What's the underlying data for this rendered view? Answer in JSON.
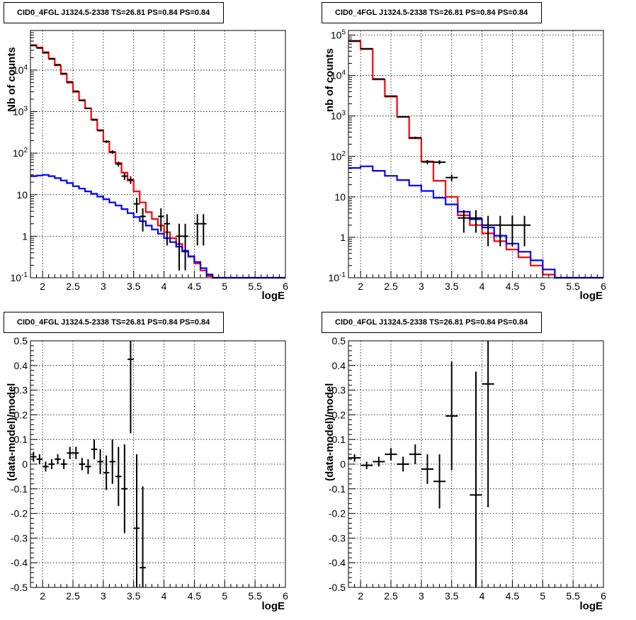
{
  "chart_data": [
    {
      "type": "line",
      "title": "CID0_4FGL J1324.5-2338 TS=26.81 PS=0.84 PS=0.84",
      "xlabel": "logE",
      "ylabel": "Nb of counts",
      "xlim": [
        1.8,
        6.0
      ],
      "ylim": [
        0.1,
        90000
      ],
      "log_y": true,
      "grid": true,
      "x_ticks": [
        "2",
        "2.5",
        "3",
        "3.5",
        "4",
        "4.5",
        "5",
        "5.5",
        "6"
      ],
      "y_ticks": [
        "10^{-1}",
        "1",
        "10",
        "10^{2}",
        "10^{3}",
        "10^{4}"
      ],
      "series": [
        {
          "color": "#ff0000",
          "step": true,
          "bin_width": 0.1,
          "x": [
            1.85,
            1.95,
            2.05,
            2.15,
            2.25,
            2.35,
            2.45,
            2.55,
            2.65,
            2.75,
            2.85,
            2.95,
            3.05,
            3.15,
            3.25,
            3.35,
            3.45,
            3.55,
            3.65,
            3.75,
            3.85,
            3.95,
            4.05,
            4.15,
            4.25,
            4.35,
            4.45,
            4.55,
            4.65,
            4.75,
            4.85,
            4.95,
            5.05,
            5.15,
            5.25,
            5.35,
            5.45,
            5.55,
            5.65,
            5.75,
            5.85,
            5.95
          ],
          "values": [
            40000,
            35000,
            27000,
            19000,
            13000,
            8000,
            5000,
            3000,
            1900,
            1200,
            650,
            360,
            190,
            105,
            58,
            34,
            22,
            12,
            6.5,
            3.8,
            2.6,
            1.8,
            1.25,
            0.9,
            0.65,
            0.45,
            0.32,
            0.22,
            0.15,
            0.11,
            0.1,
            0.1,
            0.1,
            0.1,
            0.1,
            0.1,
            0.1,
            0.1,
            0.1,
            0.1,
            0.1,
            0.1
          ]
        },
        {
          "color": "#0000ff",
          "step": true,
          "bin_width": 0.1,
          "x": [
            1.85,
            1.95,
            2.05,
            2.15,
            2.25,
            2.35,
            2.45,
            2.55,
            2.65,
            2.75,
            2.85,
            2.95,
            3.05,
            3.15,
            3.25,
            3.35,
            3.45,
            3.55,
            3.65,
            3.75,
            3.85,
            3.95,
            4.05,
            4.15,
            4.25,
            4.35,
            4.45,
            4.55,
            4.65,
            4.75,
            4.85,
            4.95,
            5.05,
            5.15,
            5.25,
            5.35,
            5.45,
            5.55,
            5.65,
            5.75,
            5.85,
            5.95
          ],
          "values": [
            28,
            29,
            30,
            28,
            25,
            22,
            19,
            16,
            14,
            12,
            10.5,
            9,
            7.8,
            6.5,
            5.5,
            4.5,
            3.6,
            2.9,
            2.3,
            1.8,
            1.45,
            1.15,
            0.9,
            0.72,
            0.56,
            0.43,
            0.33,
            0.24,
            0.17,
            0.12,
            0.1,
            0.1,
            0.1,
            0.1,
            0.1,
            0.1,
            0.1,
            0.1,
            0.1,
            0.1,
            0.1,
            0.1
          ]
        },
        {
          "color": "#000000",
          "type": "errorbar",
          "x": [
            1.85,
            1.95,
            2.05,
            2.15,
            2.25,
            2.35,
            2.45,
            2.55,
            2.65,
            2.75,
            2.85,
            2.95,
            3.05,
            3.15,
            3.25,
            3.35,
            3.45,
            3.55,
            3.65,
            3.95,
            4.05,
            4.25,
            4.35,
            4.55,
            4.65
          ],
          "values": [
            39000,
            34000,
            26000,
            18500,
            13500,
            8300,
            5200,
            3100,
            1850,
            1200,
            630,
            350,
            190,
            107,
            55,
            28,
            23,
            6,
            3,
            3,
            2,
            1,
            1,
            2,
            2
          ],
          "yerr_low": [
            200,
            185,
            160,
            135,
            115,
            90,
            72,
            55,
            43,
            35,
            25,
            19,
            14,
            10,
            7.4,
            5.3,
            4.8,
            2.4,
            1.7,
            1.7,
            1.4,
            0.85,
            0.85,
            1.4,
            1.4
          ],
          "yerr_high": [
            200,
            185,
            160,
            135,
            115,
            90,
            72,
            55,
            43,
            35,
            25,
            19,
            14,
            10,
            7.4,
            5.3,
            4.8,
            2.4,
            1.7,
            1.7,
            1.4,
            1,
            1,
            1.4,
            1.4
          ]
        }
      ]
    },
    {
      "type": "line",
      "title": "CID0_4FGL J1324.5-2338 TS=26.81 PS=0.84 PS=0.84",
      "xlabel": "logE",
      "ylabel": "nb of counts",
      "xlim": [
        1.8,
        6.0
      ],
      "ylim": [
        0.1,
        130000
      ],
      "log_y": true,
      "grid": true,
      "x_ticks": [
        "2",
        "2.5",
        "3",
        "3.5",
        "4",
        "4.5",
        "5",
        "5.5",
        "6"
      ],
      "y_ticks": [
        "10^{-1}",
        "1",
        "10",
        "10^{2}",
        "10^{3}",
        "10^{4}",
        "10^{5}"
      ],
      "series": [
        {
          "color": "#ff0000",
          "step": true,
          "bin_width": 0.2,
          "x": [
            1.9,
            2.1,
            2.3,
            2.5,
            2.7,
            2.9,
            3.1,
            3.3,
            3.5,
            3.7,
            3.9,
            4.1,
            4.3,
            4.5,
            4.7,
            4.9,
            5.1,
            5.3,
            5.5,
            5.7,
            5.9
          ],
          "values": [
            70000,
            45000,
            8000,
            3000,
            950,
            280,
            75,
            25,
            10,
            3.5,
            2,
            1.25,
            0.8,
            0.5,
            0.32,
            0.2,
            0.12,
            0.1,
            0.1,
            0.1,
            0.1
          ]
        },
        {
          "color": "#0000ff",
          "step": true,
          "bin_width": 0.2,
          "x": [
            1.9,
            2.1,
            2.3,
            2.5,
            2.7,
            2.9,
            3.1,
            3.3,
            3.5,
            3.7,
            3.9,
            4.1,
            4.3,
            4.5,
            4.7,
            4.9,
            5.1,
            5.3,
            5.5,
            5.7,
            5.9
          ],
          "values": [
            52,
            57,
            44,
            33,
            26,
            19,
            14,
            9.5,
            6.5,
            4.3,
            2.8,
            1.75,
            1.1,
            0.7,
            0.44,
            0.27,
            0.16,
            0.1,
            0.1,
            0.1,
            0.1
          ]
        },
        {
          "color": "#000000",
          "type": "errorbar",
          "x_half_width": 0.1,
          "x": [
            1.9,
            2.1,
            2.3,
            2.5,
            2.7,
            2.9,
            3.1,
            3.3,
            3.5,
            3.7,
            3.9,
            4.1,
            4.3,
            4.5,
            4.7
          ],
          "values": [
            72000,
            46000,
            8200,
            3100,
            950,
            290,
            73,
            72,
            30,
            3,
            3,
            2,
            2,
            2,
            2
          ],
          "yerr_low": [
            270,
            215,
            90,
            55,
            31,
            17,
            8.5,
            8.5,
            5.5,
            1.7,
            1.7,
            1.4,
            1.4,
            1.4,
            1.4
          ],
          "yerr_high": [
            270,
            215,
            90,
            55,
            31,
            17,
            8.5,
            8.5,
            5.5,
            1.7,
            1.7,
            1.4,
            1.4,
            1.4,
            1.4
          ]
        }
      ]
    },
    {
      "type": "scatter",
      "title": "CID0_4FGL J1324.5-2338 TS=26.81 PS=0.84 PS=0.84",
      "xlabel": "logE",
      "ylabel": "(data-model)/model",
      "xlim": [
        1.8,
        6.0
      ],
      "ylim": [
        -0.5,
        0.5
      ],
      "grid": true,
      "x_ticks": [
        "2",
        "2.5",
        "3",
        "3.5",
        "4",
        "4.5",
        "5",
        "5.5",
        "6"
      ],
      "y_ticks": [
        "-0.5",
        "-0.4",
        "-0.3",
        "-0.2",
        "-0.1",
        "0",
        "0.1",
        "0.2",
        "0.3",
        "0.4",
        "0.5"
      ],
      "series": [
        {
          "color": "#000000",
          "type": "errorbar",
          "x_half_width": 0.05,
          "x": [
            1.85,
            1.95,
            2.05,
            2.15,
            2.25,
            2.35,
            2.45,
            2.55,
            2.65,
            2.75,
            2.85,
            2.95,
            3.05,
            3.15,
            3.25,
            3.35,
            3.45,
            3.55,
            3.65
          ],
          "values": [
            0.03,
            0.02,
            -0.01,
            0.0,
            0.02,
            0.0,
            0.045,
            0.045,
            0.0,
            -0.01,
            0.06,
            0.01,
            -0.035,
            0.01,
            -0.05,
            -0.1,
            0.425,
            -0.26,
            -0.42
          ],
          "yerr": [
            0.02,
            0.02,
            0.02,
            0.02,
            0.02,
            0.02,
            0.025,
            0.025,
            0.025,
            0.03,
            0.04,
            0.05,
            0.07,
            0.09,
            0.12,
            0.18,
            0.3,
            0.3,
            0.33
          ]
        }
      ]
    },
    {
      "type": "scatter",
      "title": "CID0_4FGL J1324.5-2338 TS=26.81 PS=0.84 PS=0.84",
      "xlabel": "logE",
      "ylabel": "(data-model)/model",
      "xlim": [
        1.8,
        6.0
      ],
      "ylim": [
        -0.5,
        0.5
      ],
      "grid": true,
      "x_ticks": [
        "2",
        "2.5",
        "3",
        "3.5",
        "4",
        "4.5",
        "5",
        "5.5",
        "6"
      ],
      "y_ticks": [
        "-0.5",
        "-0.4",
        "-0.3",
        "-0.2",
        "-0.1",
        "0",
        "0.1",
        "0.2",
        "0.3",
        "0.4",
        "0.5"
      ],
      "series": [
        {
          "color": "#000000",
          "type": "errorbar",
          "x_half_width": 0.1,
          "x": [
            1.9,
            2.1,
            2.3,
            2.5,
            2.7,
            2.9,
            3.1,
            3.3,
            3.5,
            3.9,
            4.1
          ],
          "values": [
            0.025,
            -0.005,
            0.01,
            0.04,
            0.0,
            0.04,
            -0.02,
            -0.07,
            0.195,
            -0.125,
            0.325
          ],
          "yerr": [
            0.015,
            0.015,
            0.02,
            0.025,
            0.03,
            0.04,
            0.06,
            0.11,
            0.22,
            0.5,
            0.5
          ]
        }
      ]
    }
  ]
}
